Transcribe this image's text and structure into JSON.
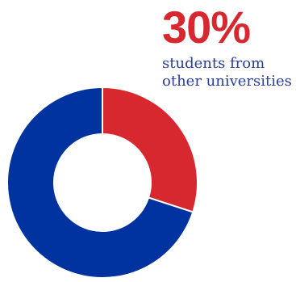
{
  "stat": {
    "value": "30%",
    "caption_lines": [
      "students from",
      "other universities"
    ]
  },
  "colors": {
    "accent_red": "#d7282f",
    "brand_blue": "#0033a0",
    "caption_blue": "#2a3f9d"
  },
  "chart_data": {
    "type": "pie",
    "donut": true,
    "title": "",
    "legend": "none",
    "slices": [
      {
        "value": 30,
        "color": "#d7282f"
      },
      {
        "value": 70,
        "color": "#0033a0"
      }
    ]
  }
}
